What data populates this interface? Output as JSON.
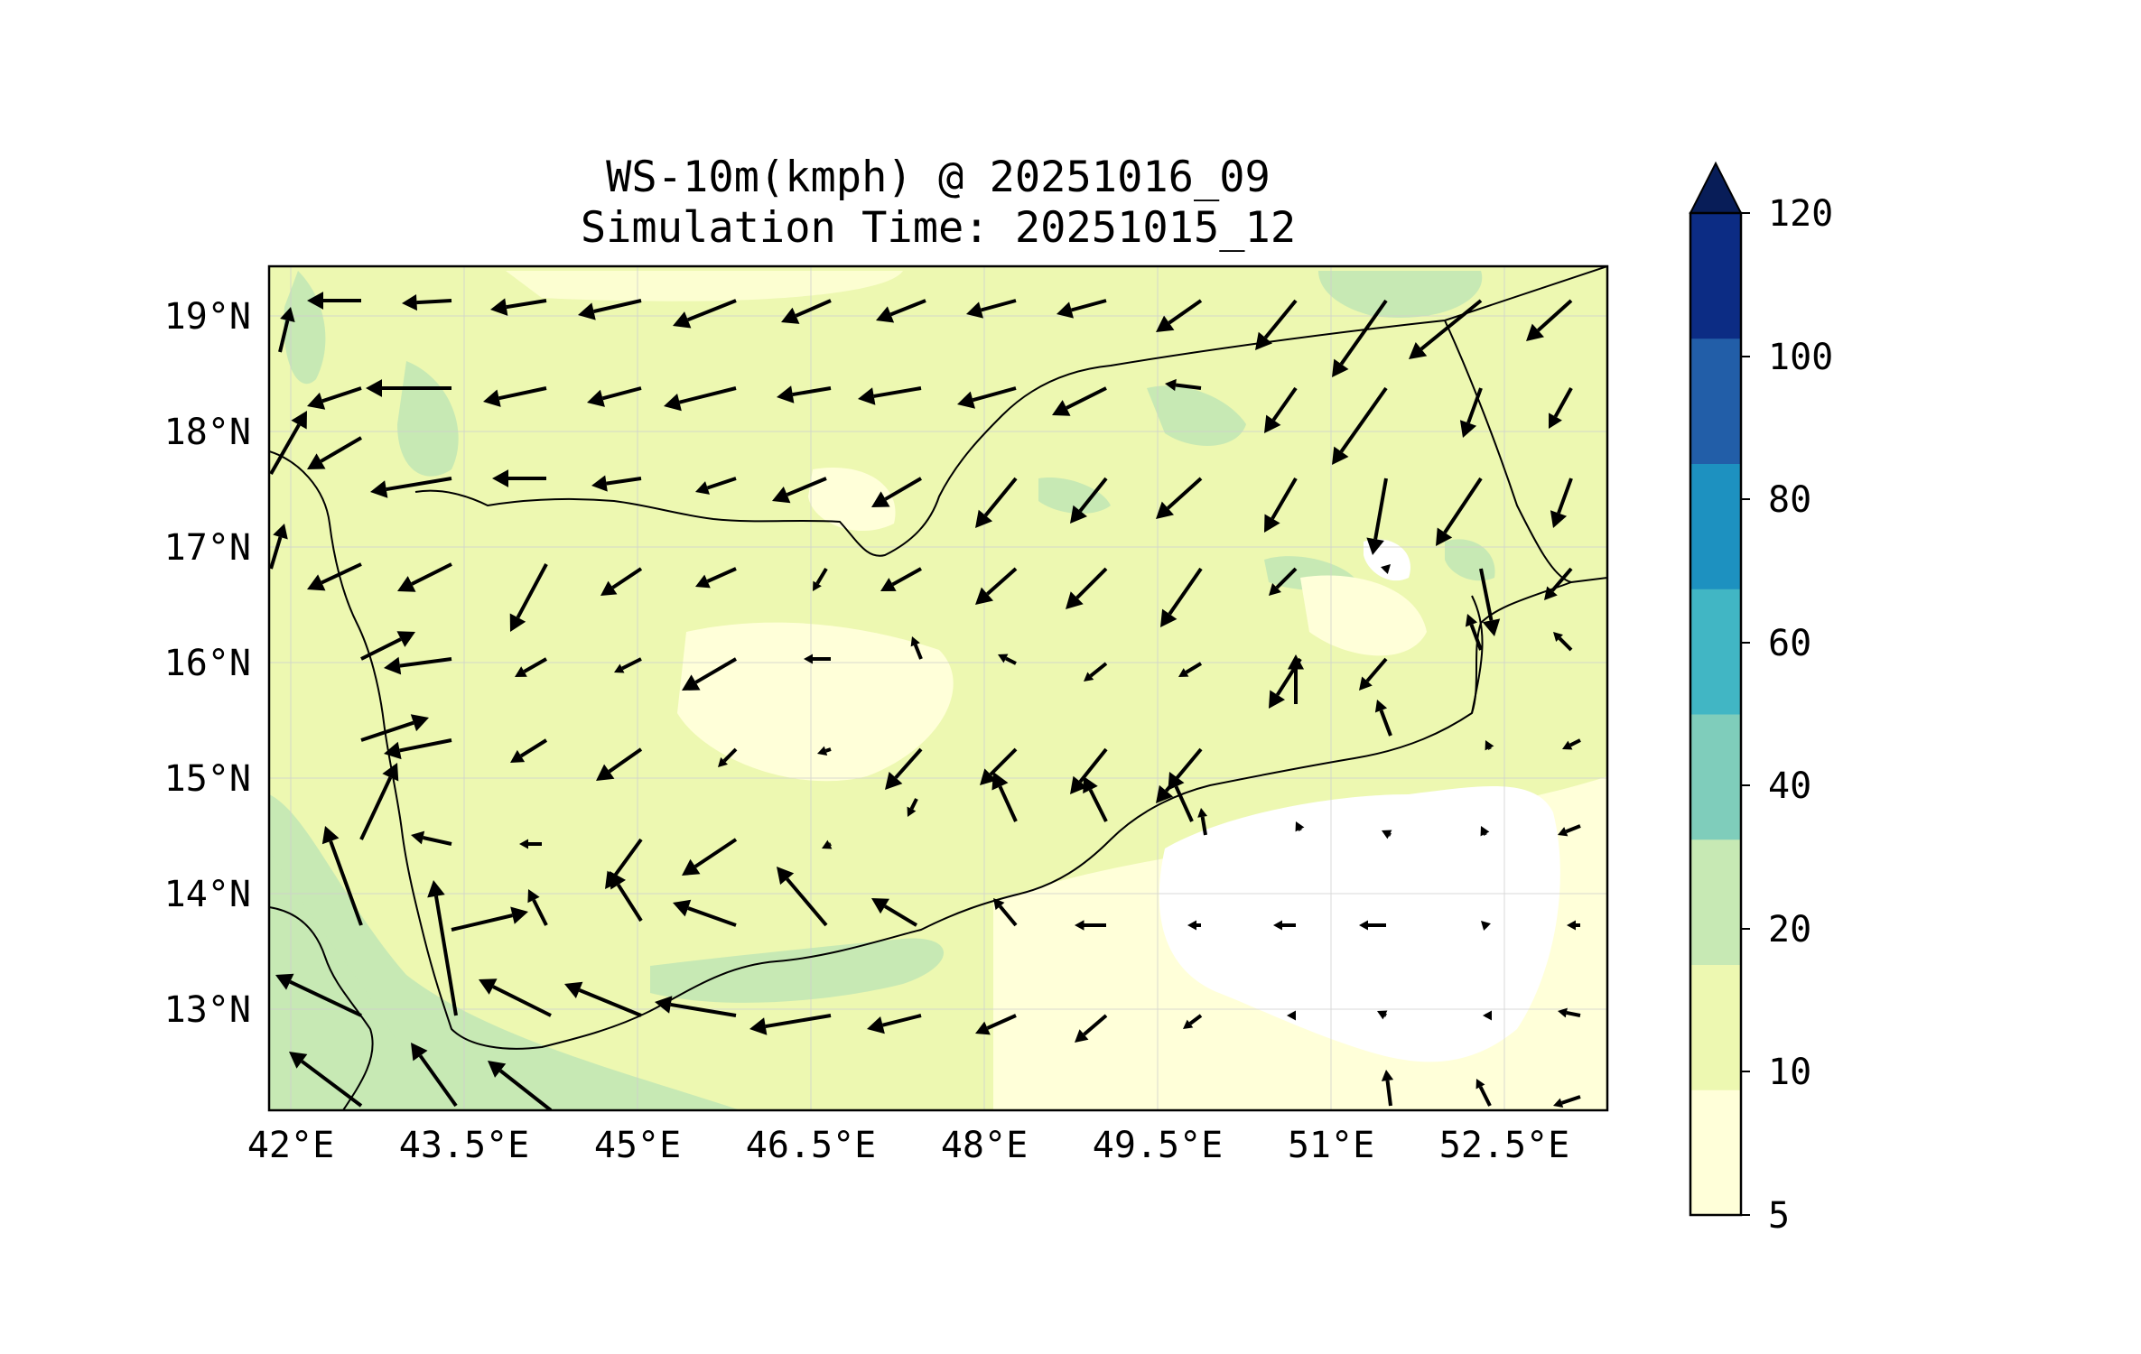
{
  "chart_data": {
    "type": "map",
    "variable": "WS-10m(kmph)",
    "title": "WS-10m(kmph) @ 20251016_09",
    "subtitle": "Simulation Time: 20251015_12",
    "lon_range": [
      42.0,
      53.0
    ],
    "lat_range": [
      12.0,
      19.3
    ],
    "x_ticks": [
      "42°E",
      "43.5°E",
      "45°E",
      "46.5°E",
      "48°E",
      "49.5°E",
      "51°E",
      "52.5°E"
    ],
    "x_tick_values": [
      42.0,
      43.5,
      45.0,
      46.5,
      48.0,
      49.5,
      51.0,
      52.5
    ],
    "y_ticks": [
      "13°N",
      "14°N",
      "15°N",
      "16°N",
      "17°N",
      "18°N",
      "19°N"
    ],
    "y_tick_values": [
      13,
      14,
      15,
      16,
      17,
      18,
      19
    ],
    "colorbar": {
      "levels": [
        5,
        10,
        20,
        40,
        60,
        80,
        100,
        120
      ],
      "labels": [
        "5",
        "10",
        "20",
        "40",
        "60",
        "80",
        "100",
        "120"
      ],
      "colors": [
        "#ffffd9",
        "#edf8b1",
        "#c7e9b4",
        "#7fcdbb",
        "#41b6c4",
        "#1d91c0",
        "#225ea8",
        "#0c2c84"
      ],
      "extend": "max",
      "extend_color": "#081d58"
    },
    "grid": true,
    "wind_vectors_present": true
  }
}
